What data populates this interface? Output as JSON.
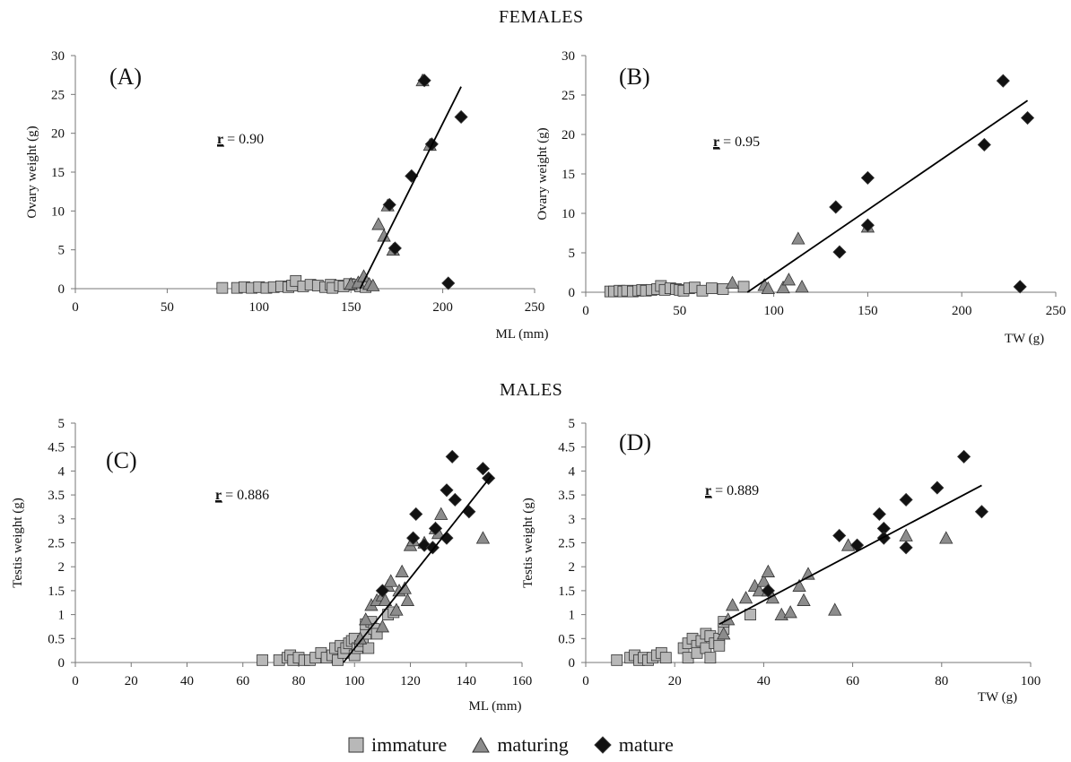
{
  "sections": {
    "top": "FEMALES",
    "bottom": "MALES"
  },
  "colors": {
    "immature": "#b8b8b8",
    "maturing": "#8c8c8c",
    "mature": "#111111",
    "stroke": "#333333"
  },
  "legend": [
    {
      "key": "immature",
      "label": "immature",
      "marker": "square"
    },
    {
      "key": "maturing",
      "label": "maturing",
      "marker": "triangle"
    },
    {
      "key": "mature",
      "label": "mature",
      "marker": "diamond"
    }
  ],
  "chart_data": [
    {
      "type": "scatter",
      "panel": "(A)",
      "stat_label": "r",
      "stat_value": " = 0.90",
      "xlabel": "ML (mm)",
      "ylabel": "Ovary weight (g)",
      "xlim": [
        0,
        250
      ],
      "ylim": [
        0,
        30
      ],
      "xticks": [
        0,
        50,
        100,
        150,
        200,
        250
      ],
      "yticks": [
        0,
        5,
        10,
        15,
        20,
        25,
        30
      ],
      "trendline": [
        [
          155,
          0
        ],
        [
          210,
          26
        ]
      ],
      "series": [
        {
          "key": "immature",
          "points": [
            [
              80,
              0.1
            ],
            [
              88,
              0.1
            ],
            [
              92,
              0.2
            ],
            [
              96,
              0.1
            ],
            [
              100,
              0.2
            ],
            [
              104,
              0.1
            ],
            [
              108,
              0.2
            ],
            [
              112,
              0.3
            ],
            [
              116,
              0.2
            ],
            [
              118,
              0.4
            ],
            [
              120,
              1.0
            ],
            [
              124,
              0.3
            ],
            [
              128,
              0.5
            ],
            [
              132,
              0.4
            ],
            [
              136,
              0.2
            ],
            [
              139,
              0.5
            ],
            [
              140,
              0.1
            ],
            [
              144,
              0.4
            ],
            [
              146,
              0.3
            ],
            [
              149,
              0.6
            ],
            [
              152,
              0.5
            ],
            [
              155,
              0.3
            ],
            [
              158,
              0.2
            ]
          ]
        },
        {
          "key": "maturing",
          "points": [
            [
              150,
              0.6
            ],
            [
              154,
              0.8
            ],
            [
              157,
              1.6
            ],
            [
              160,
              0.6
            ],
            [
              162,
              0.4
            ],
            [
              165,
              8.3
            ],
            [
              168,
              6.8
            ],
            [
              170,
              10.7
            ],
            [
              173,
              5.0
            ],
            [
              189,
              26.8
            ],
            [
              193,
              18.5
            ]
          ]
        },
        {
          "key": "mature",
          "points": [
            [
              171,
              10.8
            ],
            [
              174,
              5.2
            ],
            [
              183,
              14.5
            ],
            [
              190,
              26.8
            ],
            [
              194,
              18.6
            ],
            [
              203,
              0.7
            ],
            [
              210,
              22.1
            ]
          ]
        }
      ]
    },
    {
      "type": "scatter",
      "panel": "(B)",
      "stat_label": "r",
      "stat_value": " = 0.95",
      "xlabel": "TW (g)",
      "ylabel": "Ovary weight (g)",
      "xlim": [
        0,
        250
      ],
      "ylim": [
        0,
        30
      ],
      "xticks": [
        0,
        50,
        100,
        150,
        200,
        250
      ],
      "yticks": [
        0,
        5,
        10,
        15,
        20,
        25,
        30
      ],
      "trendline": [
        [
          86,
          0
        ],
        [
          235,
          24.3
        ]
      ],
      "series": [
        {
          "key": "immature",
          "points": [
            [
              13,
              0.1
            ],
            [
              15,
              0.1
            ],
            [
              18,
              0.2
            ],
            [
              20,
              0.1
            ],
            [
              22,
              0.2
            ],
            [
              25,
              0.1
            ],
            [
              28,
              0.2
            ],
            [
              30,
              0.3
            ],
            [
              32,
              0.2
            ],
            [
              35,
              0.3
            ],
            [
              38,
              0.4
            ],
            [
              40,
              0.8
            ],
            [
              42,
              0.3
            ],
            [
              45,
              0.5
            ],
            [
              48,
              0.4
            ],
            [
              50,
              0.3
            ],
            [
              52,
              0.2
            ],
            [
              55,
              0.5
            ],
            [
              58,
              0.6
            ],
            [
              62,
              0.2
            ],
            [
              67,
              0.5
            ],
            [
              73,
              0.4
            ],
            [
              84,
              0.7
            ]
          ]
        },
        {
          "key": "maturing",
          "points": [
            [
              78,
              1.2
            ],
            [
              95,
              0.9
            ],
            [
              97,
              0.5
            ],
            [
              105,
              0.6
            ],
            [
              108,
              1.6
            ],
            [
              113,
              6.8
            ],
            [
              115,
              0.7
            ],
            [
              150,
              8.3
            ]
          ]
        },
        {
          "key": "mature",
          "points": [
            [
              133,
              10.8
            ],
            [
              135,
              5.1
            ],
            [
              150,
              14.5
            ],
            [
              150,
              8.5
            ],
            [
              212,
              18.7
            ],
            [
              222,
              26.8
            ],
            [
              231,
              0.7
            ],
            [
              235,
              22.1
            ]
          ]
        }
      ]
    },
    {
      "type": "scatter",
      "panel": "(C)",
      "stat_label": "r",
      "stat_value": " = 0.886",
      "xlabel": "ML (mm)",
      "ylabel": "Testis weight (g)",
      "xlim": [
        0,
        160
      ],
      "ylim": [
        0,
        5
      ],
      "xticks": [
        0,
        20,
        40,
        60,
        80,
        100,
        120,
        140,
        160
      ],
      "yticks": [
        0,
        0.5,
        1,
        1.5,
        2,
        2.5,
        3,
        3.5,
        4,
        4.5,
        5
      ],
      "trendline": [
        [
          96,
          0
        ],
        [
          149,
          3.9
        ]
      ],
      "series": [
        {
          "key": "immature",
          "points": [
            [
              67,
              0.05
            ],
            [
              73,
              0.05
            ],
            [
              76,
              0.1
            ],
            [
              77,
              0.15
            ],
            [
              78,
              0.05
            ],
            [
              80,
              0.1
            ],
            [
              82,
              0.05
            ],
            [
              84,
              0.05
            ],
            [
              86,
              0.1
            ],
            [
              88,
              0.2
            ],
            [
              90,
              0.1
            ],
            [
              92,
              0.15
            ],
            [
              93,
              0.3
            ],
            [
              94,
              0.05
            ],
            [
              95,
              0.35
            ],
            [
              96,
              0.2
            ],
            [
              97,
              0.3
            ],
            [
              98,
              0.4
            ],
            [
              99,
              0.45
            ],
            [
              100,
              0.5
            ],
            [
              100,
              0.15
            ],
            [
              101,
              0.3
            ],
            [
              102,
              0.35
            ],
            [
              103,
              0.45
            ],
            [
              104,
              0.6
            ],
            [
              104,
              0.8
            ],
            [
              105,
              0.3
            ],
            [
              106,
              0.85
            ],
            [
              107,
              0.7
            ],
            [
              108,
              0.6
            ],
            [
              112,
              1.0
            ],
            [
              114,
              1.05
            ]
          ]
        },
        {
          "key": "maturing",
          "points": [
            [
              102,
              0.5
            ],
            [
              104,
              0.9
            ],
            [
              106,
              1.2
            ],
            [
              108,
              1.3
            ],
            [
              110,
              1.4
            ],
            [
              111,
              1.3
            ],
            [
              112,
              1.6
            ],
            [
              113,
              1.7
            ],
            [
              115,
              1.1
            ],
            [
              116,
              1.5
            ],
            [
              117,
              1.9
            ],
            [
              118,
              1.55
            ],
            [
              119,
              1.3
            ],
            [
              120,
              2.45
            ],
            [
              121,
              2.55
            ],
            [
              125,
              2.5
            ],
            [
              129,
              2.8
            ],
            [
              130,
              2.7
            ],
            [
              131,
              3.1
            ],
            [
              146,
              2.6
            ],
            [
              110,
              0.75
            ]
          ]
        },
        {
          "key": "mature",
          "points": [
            [
              110,
              1.5
            ],
            [
              121,
              2.6
            ],
            [
              122,
              3.1
            ],
            [
              125,
              2.45
            ],
            [
              128,
              2.4
            ],
            [
              129,
              2.8
            ],
            [
              133,
              3.6
            ],
            [
              133,
              2.6
            ],
            [
              135,
              4.3
            ],
            [
              136,
              3.4
            ],
            [
              141,
              3.15
            ],
            [
              146,
              4.05
            ],
            [
              148,
              3.85
            ]
          ]
        }
      ]
    },
    {
      "type": "scatter",
      "panel": "(D)",
      "stat_label": "r",
      "stat_value": " = 0.889",
      "xlabel": "TW (g)",
      "ylabel": "Testis weight (g)",
      "xlim": [
        0,
        100
      ],
      "ylim": [
        0,
        5
      ],
      "xticks": [
        0,
        20,
        40,
        60,
        80,
        100
      ],
      "yticks": [
        0,
        0.5,
        1,
        1.5,
        2,
        2.5,
        3,
        3.5,
        4,
        4.5,
        5
      ],
      "trendline": [
        [
          30,
          0.8
        ],
        [
          89,
          3.7
        ]
      ],
      "series": [
        {
          "key": "immature",
          "points": [
            [
              7,
              0.05
            ],
            [
              10,
              0.1
            ],
            [
              11,
              0.15
            ],
            [
              12,
              0.05
            ],
            [
              13,
              0.1
            ],
            [
              14,
              0.05
            ],
            [
              15,
              0.1
            ],
            [
              16,
              0.15
            ],
            [
              17,
              0.2
            ],
            [
              18,
              0.1
            ],
            [
              22,
              0.3
            ],
            [
              23,
              0.4
            ],
            [
              23,
              0.1
            ],
            [
              24,
              0.5
            ],
            [
              25,
              0.35
            ],
            [
              25,
              0.2
            ],
            [
              26,
              0.45
            ],
            [
              27,
              0.3
            ],
            [
              27,
              0.6
            ],
            [
              28,
              0.55
            ],
            [
              28,
              0.1
            ],
            [
              29,
              0.4
            ],
            [
              30,
              0.5
            ],
            [
              30,
              0.35
            ],
            [
              31,
              0.7
            ],
            [
              31,
              0.85
            ],
            [
              37,
              1.0
            ]
          ]
        },
        {
          "key": "maturing",
          "points": [
            [
              31,
              0.6
            ],
            [
              32,
              0.9
            ],
            [
              33,
              1.2
            ],
            [
              36,
              1.35
            ],
            [
              38,
              1.6
            ],
            [
              39,
              1.5
            ],
            [
              40,
              1.7
            ],
            [
              41,
              1.9
            ],
            [
              42,
              1.35
            ],
            [
              44,
              1.0
            ],
            [
              46,
              1.05
            ],
            [
              48,
              1.6
            ],
            [
              49,
              1.3
            ],
            [
              50,
              1.85
            ],
            [
              56,
              1.1
            ],
            [
              59,
              2.45
            ],
            [
              72,
              2.65
            ],
            [
              81,
              2.6
            ],
            [
              41,
              1.5
            ]
          ]
        },
        {
          "key": "mature",
          "points": [
            [
              41,
              1.5
            ],
            [
              57,
              2.65
            ],
            [
              61,
              2.45
            ],
            [
              66,
              3.1
            ],
            [
              67,
              2.8
            ],
            [
              67,
              2.6
            ],
            [
              72,
              2.4
            ],
            [
              72,
              3.4
            ],
            [
              79,
              3.65
            ],
            [
              85,
              4.3
            ],
            [
              89,
              3.15
            ]
          ]
        }
      ]
    }
  ]
}
